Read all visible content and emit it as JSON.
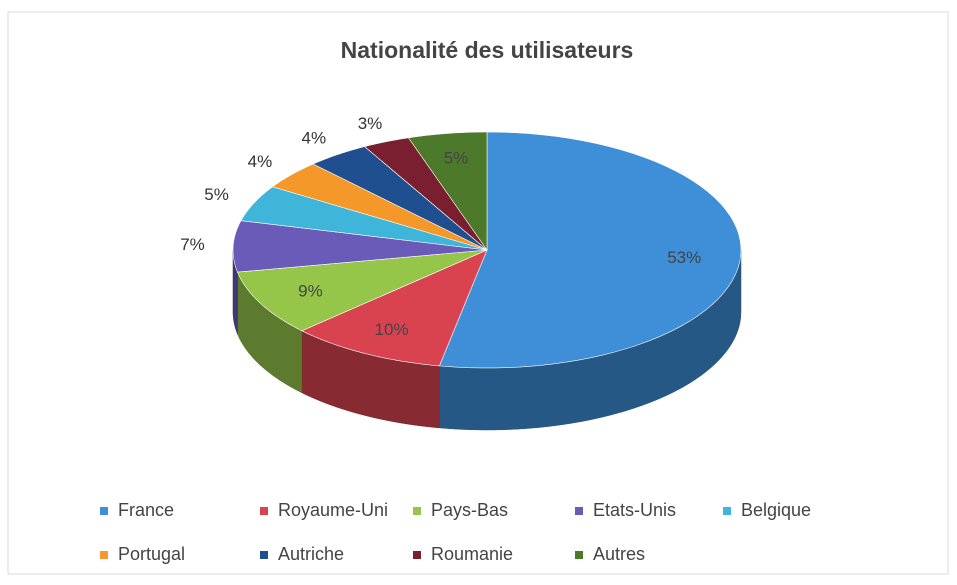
{
  "chart_data": {
    "type": "pie3d",
    "title": "Nationalité des utilisateurs",
    "categories": [
      "France",
      "Royaume-Uni",
      "Pays-Bas",
      "Etats-Unis",
      "Belgique",
      "Portugal",
      "Autriche",
      "Roumanie",
      "Autres"
    ],
    "values": [
      53,
      10,
      9,
      7,
      5,
      4,
      4,
      3,
      5
    ],
    "value_labels": [
      "53%",
      "10%",
      "9%",
      "7%",
      "5%",
      "4%",
      "4%",
      "3%",
      "5%"
    ],
    "colors": [
      "#3e8ed8",
      "#d9434f",
      "#95c64a",
      "#6a5bb8",
      "#3fb6d9",
      "#f5982a",
      "#1f4f8e",
      "#7a1f30",
      "#4c7a2a"
    ],
    "legend": "bottom"
  }
}
